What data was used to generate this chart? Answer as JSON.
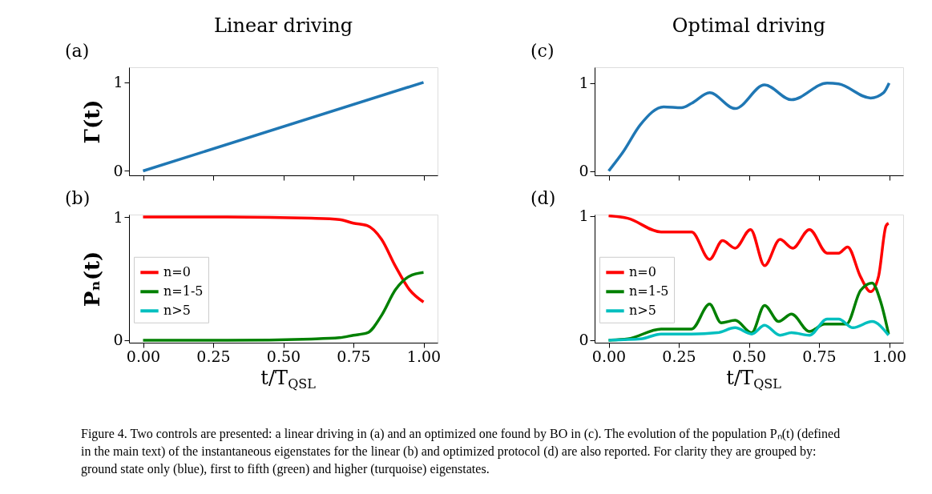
{
  "chart_data": [
    {
      "type": "line",
      "title": "Linear driving",
      "ylabel": "Γ(t)",
      "annotations": [
        "(a)"
      ],
      "x": [
        0,
        1
      ],
      "series": [
        {
          "color": "#1f77b4",
          "values": [
            0,
            1
          ]
        }
      ],
      "xlim": [
        -0.05,
        1.05
      ],
      "ylim": [
        -0.05,
        1.17
      ],
      "xticks": [
        0,
        0.25,
        0.5,
        0.75,
        1
      ],
      "yticks": [
        0,
        1
      ],
      "tick_labels": "y",
      "grid": false,
      "legend": false
    },
    {
      "type": "line",
      "ylabel": "Pₙ(t)",
      "xlabel": "t/T$_{QSL}$",
      "annotations": [
        "(b)"
      ],
      "series": [
        {
          "name": "n=0",
          "color": "#ff0000",
          "x": [
            0,
            0.3,
            0.6,
            0.7,
            0.75,
            0.8,
            0.85,
            0.9,
            0.95,
            1.0
          ],
          "values": [
            1,
            1,
            0.99,
            0.98,
            0.95,
            0.93,
            0.82,
            0.6,
            0.41,
            0.31
          ]
        },
        {
          "name": "n=1-5",
          "color": "#008000",
          "x": [
            0,
            0.3,
            0.6,
            0.7,
            0.75,
            0.8,
            0.85,
            0.9,
            0.95,
            1.0
          ],
          "values": [
            0,
            0,
            0.01,
            0.02,
            0.04,
            0.06,
            0.2,
            0.41,
            0.52,
            0.55
          ]
        },
        {
          "name": "n>5",
          "color": "#00bfbf"
        }
      ],
      "xlim": [
        -0.05,
        1.05
      ],
      "ylim": [
        -0.02,
        1.02
      ],
      "xticks": [
        {
          "value": 0,
          "label": "0.00"
        },
        {
          "value": 0.25,
          "label": "0.25"
        },
        {
          "value": 0.5,
          "label": "0.50"
        },
        {
          "value": 0.75,
          "label": "0.75"
        },
        {
          "value": 1,
          "label": "1.00"
        }
      ],
      "yticks": [
        0,
        1
      ],
      "grid": false,
      "legend": "left"
    },
    {
      "type": "line",
      "title": "Optimal driving",
      "annotations": [
        "(c)"
      ],
      "x": [
        0,
        0.05,
        0.114,
        0.196,
        0.26,
        0.296,
        0.36,
        0.451,
        0.556,
        0.652,
        0.779,
        0.82,
        0.934,
        0.98,
        1.0
      ],
      "series": [
        {
          "color": "#1f77b4",
          "values": [
            0,
            0.21,
            0.53,
            0.73,
            0.72,
            0.77,
            0.89,
            0.71,
            0.98,
            0.81,
            1.0,
            0.99,
            0.83,
            0.89,
            1.0
          ]
        }
      ],
      "xlim": [
        -0.05,
        1.05
      ],
      "ylim": [
        -0.05,
        1.18
      ],
      "xticks": [
        0,
        0.25,
        0.5,
        0.75,
        1
      ],
      "yticks": [
        0,
        1
      ],
      "tick_labels": "y",
      "grid": false,
      "legend": false
    },
    {
      "type": "line",
      "xlabel": "t/T$_{QSL}$",
      "annotations": [
        "(d)",
        "Figure 4.  Two controls are presented: a linear driving in (a) and an optimized one found by BO in (c). The evolution of the population Pₙ(t) (defined in the main text) of the instantaneous eigenstates for the linear (b) and optimized protocol (d) are also reported. For clarity they are grouped by: ground state only (blue), first to fifth (green) and higher (turquoise) eigenstates."
      ],
      "series": [
        {
          "name": "n=0",
          "color": "#ff0000",
          "x": [
            0,
            0.068,
            0.187,
            0.296,
            0.36,
            0.406,
            0.451,
            0.506,
            0.556,
            0.611,
            0.656,
            0.716,
            0.779,
            0.82,
            0.852,
            0.898,
            0.934,
            0.962,
            0.989,
            0.998
          ],
          "values": [
            1.0,
            0.98,
            0.87,
            0.87,
            0.65,
            0.8,
            0.74,
            0.89,
            0.6,
            0.81,
            0.74,
            0.89,
            0.7,
            0.7,
            0.75,
            0.51,
            0.39,
            0.51,
            0.92,
            0.94
          ]
        },
        {
          "name": "n=1-5",
          "color": "#008000",
          "x": [
            0,
            0.068,
            0.187,
            0.296,
            0.36,
            0.401,
            0.451,
            0.51,
            0.556,
            0.606,
            0.652,
            0.716,
            0.77,
            0.848,
            0.898,
            0.939,
            0.971,
            0.998
          ],
          "values": [
            0,
            0.01,
            0.09,
            0.09,
            0.29,
            0.14,
            0.16,
            0.06,
            0.28,
            0.15,
            0.21,
            0.07,
            0.13,
            0.13,
            0.4,
            0.46,
            0.3,
            0.05
          ]
        },
        {
          "name": "n>5",
          "color": "#00bfbf",
          "x": [
            0,
            0.114,
            0.187,
            0.296,
            0.387,
            0.451,
            0.51,
            0.556,
            0.611,
            0.652,
            0.716,
            0.779,
            0.82,
            0.871,
            0.939,
            0.998
          ],
          "values": [
            0,
            0.01,
            0.05,
            0.05,
            0.06,
            0.1,
            0.05,
            0.12,
            0.04,
            0.06,
            0.04,
            0.17,
            0.17,
            0.1,
            0.15,
            0.04
          ]
        }
      ],
      "xlim": [
        -0.05,
        1.05
      ],
      "ylim": [
        -0.02,
        1.01
      ],
      "xticks": [
        {
          "value": 0,
          "label": "0.00"
        },
        {
          "value": 0.25,
          "label": "0.25"
        },
        {
          "value": 0.5,
          "label": "0.50"
        },
        {
          "value": 0.75,
          "label": "0.75"
        },
        {
          "value": 1,
          "label": "1.00"
        }
      ],
      "yticks": [
        0,
        1
      ],
      "grid": false,
      "legend": "left"
    }
  ]
}
